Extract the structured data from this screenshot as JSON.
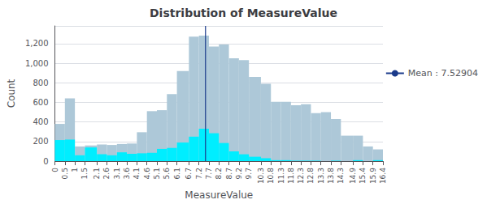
{
  "chart_data": {
    "type": "histogram",
    "title": "Distribution of MeasureValue",
    "xlabel": "MeasureValue",
    "ylabel": "Count",
    "bins": [
      0,
      0.5,
      1,
      1.5,
      2.1,
      2.6,
      3.1,
      3.6,
      4.1,
      4.6,
      5.1,
      5.6,
      6.1,
      6.7,
      7.2,
      7.7,
      8.2,
      8.7,
      9.2,
      9.7,
      10.3,
      10.8,
      11.3,
      11.8,
      12.3,
      12.8,
      13.3,
      13.8,
      14.3,
      14.9,
      15.4,
      15.9,
      16.4
    ],
    "series": [
      {
        "color": "#adc8d8",
        "values": [
          380,
          640,
          150,
          160,
          170,
          165,
          175,
          180,
          295,
          510,
          520,
          685,
          920,
          1270,
          1280,
          1170,
          1190,
          1050,
          1030,
          860,
          790,
          605,
          605,
          570,
          580,
          490,
          500,
          430,
          260,
          260,
          150,
          120
        ]
      },
      {
        "color": "#00eeff",
        "values": [
          215,
          220,
          60,
          140,
          70,
          60,
          90,
          75,
          80,
          85,
          125,
          135,
          190,
          250,
          330,
          285,
          185,
          100,
          70,
          45,
          30,
          10,
          10,
          5,
          5,
          5,
          0,
          5,
          0,
          10,
          0,
          10
        ]
      }
    ],
    "mean_line": {
      "x": 7.52904,
      "label": "Mean : 7.52904",
      "color": "#1a3a8a"
    },
    "xlim": [
      0,
      16.4
    ],
    "xticks": [
      0,
      0.5,
      1,
      1.5,
      2.1,
      2.6,
      3.1,
      3.6,
      4.1,
      4.6,
      5.1,
      5.6,
      6.1,
      6.7,
      7.2,
      7.7,
      8.2,
      8.7,
      9.2,
      9.7,
      10.3,
      10.8,
      11.3,
      11.8,
      12.3,
      12.8,
      13.3,
      13.8,
      14.3,
      14.9,
      15.4,
      15.9,
      16.4
    ],
    "ylim": [
      0,
      1380
    ],
    "yticks": [
      0,
      200,
      400,
      600,
      800,
      {
        "value": 1000,
        "label": "1,000"
      },
      {
        "value": 1200,
        "label": "1,200"
      }
    ],
    "grid": true,
    "legend": "right"
  }
}
